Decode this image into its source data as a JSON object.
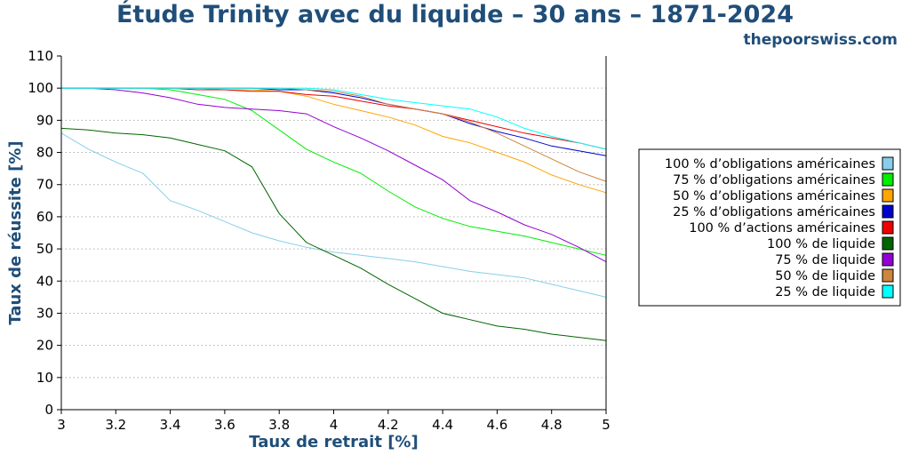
{
  "header": {
    "title": "Étude Trinity avec du liquide – 30 ans – 1871-2024",
    "site": "thepoorswiss.com"
  },
  "chart_data": {
    "type": "line",
    "title": "Étude Trinity avec du liquide – 30 ans – 1871-2024",
    "xlabel": "Taux de retrait [%]",
    "ylabel": "Taux de réussite [%]",
    "xlim": [
      3,
      5
    ],
    "ylim": [
      0,
      110
    ],
    "x_ticks": [
      "3",
      "3.2",
      "3.4",
      "3.6",
      "3.8",
      "4",
      "4.2",
      "4.4",
      "4.6",
      "4.8",
      "5"
    ],
    "y_ticks": [
      "0",
      "10",
      "20",
      "30",
      "40",
      "50",
      "60",
      "70",
      "80",
      "90",
      "100",
      "110"
    ],
    "grid": "horizontal dotted",
    "legend_position": "right",
    "x": [
      3.0,
      3.1,
      3.2,
      3.3,
      3.4,
      3.5,
      3.6,
      3.7,
      3.8,
      3.9,
      4.0,
      4.1,
      4.2,
      4.3,
      4.4,
      4.5,
      4.6,
      4.7,
      4.8,
      4.9,
      5.0
    ],
    "series": [
      {
        "name": "100 % d’obligations américaines",
        "color": "#87ceeb",
        "values": [
          86,
          81,
          77,
          73.5,
          65,
          62,
          58.5,
          55,
          52.5,
          50.5,
          49,
          48,
          47,
          46,
          44.5,
          43,
          42,
          41,
          39,
          37,
          35
        ]
      },
      {
        "name": "75 % d’obligations américaines",
        "color": "#00ee00",
        "values": [
          100,
          100,
          100,
          100,
          99.5,
          98,
          96.5,
          93,
          87,
          81,
          77,
          73.5,
          68,
          63,
          59.5,
          57,
          55.5,
          54,
          52,
          50,
          48
        ]
      },
      {
        "name": "50 % d’obligations américaines",
        "color": "#ffa500",
        "values": [
          100,
          100,
          100,
          100,
          100,
          100,
          99.5,
          99.5,
          99,
          97.5,
          95,
          93,
          91,
          88.5,
          85,
          83,
          80,
          77,
          73,
          70,
          67.5
        ]
      },
      {
        "name": "25 % d’obligations américaines",
        "color": "#0000cd",
        "values": [
          100,
          100,
          100,
          100,
          100,
          100,
          100,
          100,
          99.5,
          99.5,
          98.5,
          97,
          95,
          93.5,
          92,
          89,
          86.5,
          84.5,
          82,
          80.5,
          79
        ]
      },
      {
        "name": "100 % d’actions américaines",
        "color": "#ee0000",
        "values": [
          100,
          100,
          100,
          100,
          100,
          99.5,
          99.5,
          99,
          99,
          98,
          97.5,
          96,
          94.5,
          93.5,
          92,
          90,
          88,
          86,
          84.5,
          83,
          81
        ]
      },
      {
        "name": "100 % de liquide",
        "color": "#006400",
        "values": [
          87.5,
          87,
          86,
          85.5,
          84.5,
          82.5,
          80.5,
          75.5,
          61,
          52,
          48,
          44,
          39,
          34.5,
          30,
          28,
          26,
          25,
          23.5,
          22.5,
          21.5
        ]
      },
      {
        "name": "75 % de liquide",
        "color": "#9400d3",
        "values": [
          100,
          100,
          99.5,
          98.5,
          97,
          95,
          94,
          93.5,
          93,
          92,
          88,
          84.5,
          80.5,
          76,
          71.5,
          65,
          61.5,
          57.5,
          54.5,
          50.5,
          46
        ]
      },
      {
        "name": "50 % de liquide",
        "color": "#cd853f",
        "values": [
          100,
          100,
          100,
          100,
          100,
          100,
          100,
          100,
          100,
          99.5,
          99,
          97.5,
          95,
          93.5,
          92,
          89.5,
          86,
          82,
          78,
          74,
          71
        ]
      },
      {
        "name": "25 % de liquide",
        "color": "#00ffff",
        "values": [
          100,
          100,
          100,
          100,
          100,
          100,
          100,
          100,
          100,
          100,
          99.5,
          98,
          96.5,
          95.5,
          94.5,
          93.5,
          91,
          87.5,
          85,
          83,
          81
        ]
      }
    ]
  }
}
